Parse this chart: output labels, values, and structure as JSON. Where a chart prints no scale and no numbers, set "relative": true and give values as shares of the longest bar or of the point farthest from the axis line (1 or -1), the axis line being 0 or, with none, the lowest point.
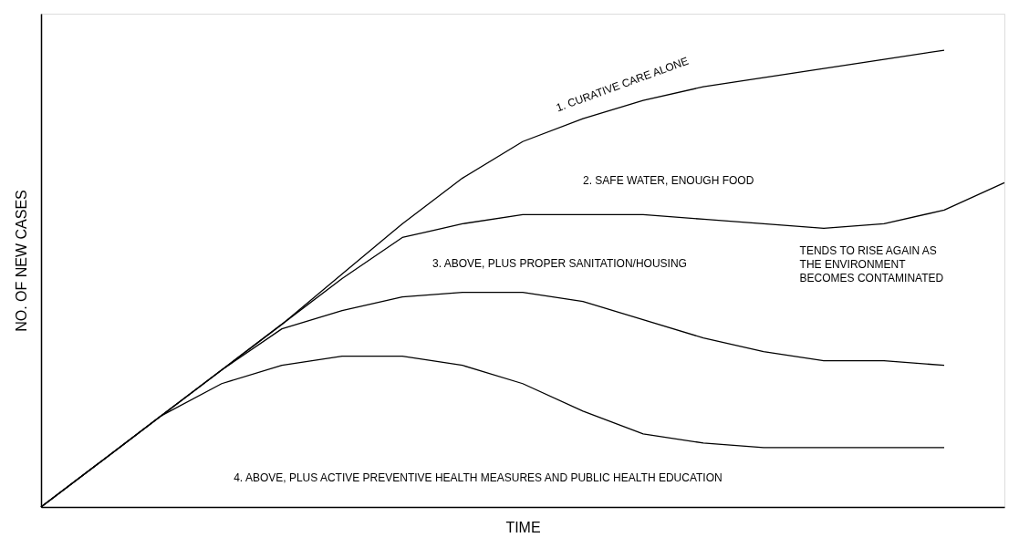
{
  "chart_data": {
    "type": "line",
    "relative": true,
    "xlabel": "TIME",
    "ylabel": "NO. OF NEW CASES",
    "categories": [
      null,
      null,
      null,
      null,
      null,
      null,
      null,
      null,
      null,
      null,
      null,
      null,
      null,
      null,
      null,
      null,
      null
    ],
    "series": [
      {
        "name": "1. CURATIVE CARE ALONE",
        "color": "#000000",
        "values": [
          0,
          0.1,
          0.2,
          0.3,
          0.4,
          0.51,
          0.62,
          0.72,
          0.8,
          0.85,
          0.89,
          0.92,
          0.94,
          0.96,
          0.98,
          1,
          null
        ]
      },
      {
        "name": "2. SAFE WATER, ENOUGH FOOD",
        "color": "#000000",
        "values": [
          0,
          0.1,
          0.2,
          0.3,
          0.4,
          0.5,
          0.59,
          0.62,
          0.64,
          0.64,
          0.64,
          0.63,
          0.62,
          0.61,
          0.62,
          0.65,
          0.71
        ]
      },
      {
        "name": "3. ABOVE, PLUS PROPER SANITATION/HOUSING",
        "color": "#000000",
        "values": [
          0,
          0.1,
          0.2,
          0.3,
          0.39,
          0.43,
          0.46,
          0.47,
          0.47,
          0.45,
          0.41,
          0.37,
          0.34,
          0.32,
          0.32,
          0.31,
          null
        ]
      },
      {
        "name": "4. ABOVE, PLUS ACTIVE PREVENTIVE HEALTH MEASURES AND PUBLIC HEALTH EDUCATION",
        "color": "#000000",
        "values": [
          0,
          0.1,
          0.2,
          0.27,
          0.31,
          0.33,
          0.33,
          0.31,
          0.27,
          0.21,
          0.16,
          0.14,
          0.13,
          0.13,
          0.13,
          0.13,
          null
        ]
      }
    ],
    "annotations": [
      "TENDS TO RISE AGAIN AS THE ENVIRONMENT BECOMES CONTAMINATED"
    ]
  }
}
